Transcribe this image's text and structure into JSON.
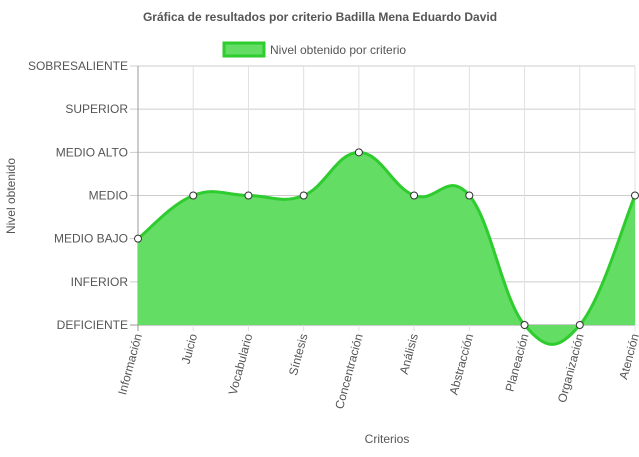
{
  "chart_data": {
    "type": "area",
    "title": "Gráfica de resultados por criterio Badilla Mena Eduardo David",
    "xlabel": "Criterios",
    "ylabel": "Nivel obtenido",
    "legend_position": "top",
    "grid": true,
    "levels": [
      "DEFICIENTE",
      "INFERIOR",
      "MEDIO BAJO",
      "MEDIO",
      "MEDIO ALTO",
      "SUPERIOR",
      "SOBRESALIENTE"
    ],
    "categories": [
      "Información",
      "Juicio",
      "Vocabulario",
      "Síntesis",
      "Concentración",
      "Análisis",
      "Abstracción",
      "Planeación",
      "Organización",
      "Atención"
    ],
    "ylim": [
      0,
      6
    ],
    "series": [
      {
        "name": "Nivel obtenido por criterio",
        "values": [
          2,
          3,
          3,
          3,
          4,
          3,
          3,
          0,
          0,
          3
        ],
        "color": "#2ecc2e",
        "fill": "#63dd63"
      }
    ]
  }
}
